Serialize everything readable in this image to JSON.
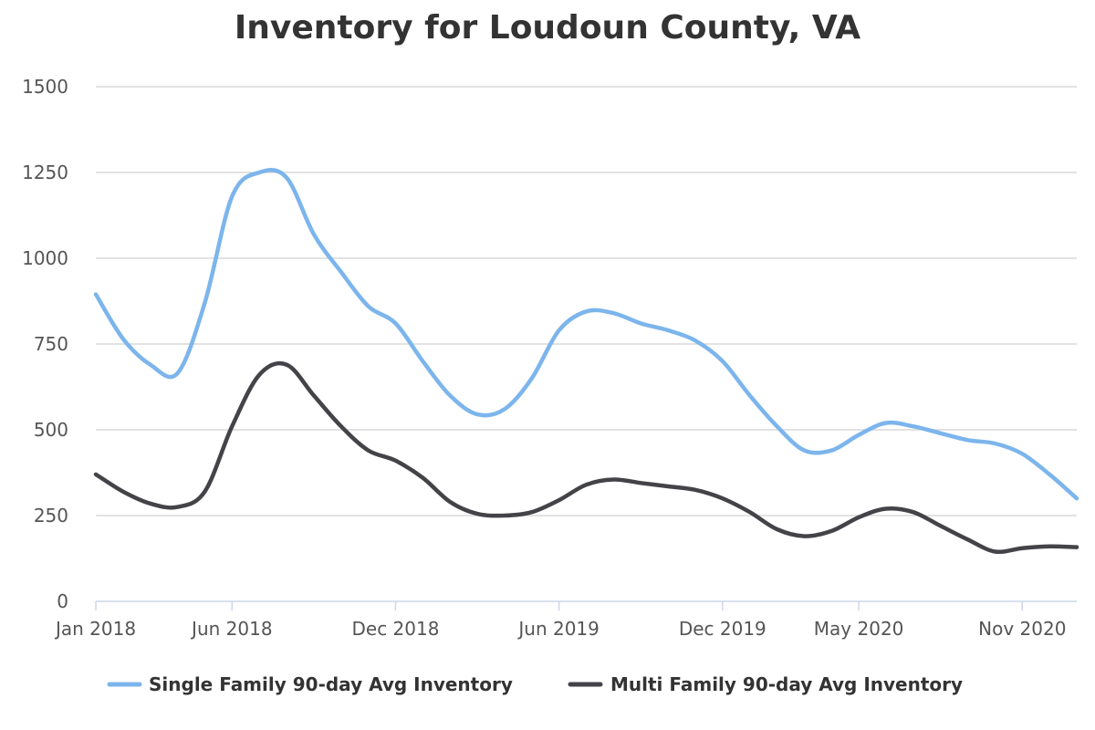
{
  "chart_data": {
    "type": "line",
    "title": "Inventory for Loudoun County, VA",
    "xlabel": "",
    "ylabel": "",
    "x_range": [
      "2018-01",
      "2021-01"
    ],
    "ylim": [
      0,
      1500
    ],
    "y_ticks": [
      0,
      250,
      500,
      750,
      1000,
      1250,
      1500
    ],
    "x_ticks": [
      {
        "label": "Jan 2018",
        "x": "2018-01"
      },
      {
        "label": "Jun 2018",
        "x": "2018-06"
      },
      {
        "label": "Dec 2018",
        "x": "2018-12"
      },
      {
        "label": "Jun 2019",
        "x": "2019-06"
      },
      {
        "label": "Dec 2019",
        "x": "2019-12"
      },
      {
        "label": "May 2020",
        "x": "2020-05"
      },
      {
        "label": "Nov 2020",
        "x": "2020-11"
      }
    ],
    "grid": true,
    "legend_position": "bottom",
    "series": [
      {
        "name": "Single Family 90-day Avg Inventory",
        "color": "#7cb5ec",
        "points": [
          [
            "2018-01",
            895
          ],
          [
            "2018-02",
            765
          ],
          [
            "2018-03",
            690
          ],
          [
            "2018-04",
            665
          ],
          [
            "2018-05",
            870
          ],
          [
            "2018-06",
            1180
          ],
          [
            "2018-07",
            1250
          ],
          [
            "2018-08",
            1235
          ],
          [
            "2018-09",
            1070
          ],
          [
            "2018-10",
            960
          ],
          [
            "2018-11",
            860
          ],
          [
            "2018-12",
            810
          ],
          [
            "2019-01",
            700
          ],
          [
            "2019-02",
            600
          ],
          [
            "2019-03",
            545
          ],
          [
            "2019-04",
            560
          ],
          [
            "2019-05",
            650
          ],
          [
            "2019-06",
            790
          ],
          [
            "2019-07",
            845
          ],
          [
            "2019-08",
            840
          ],
          [
            "2019-09",
            810
          ],
          [
            "2019-10",
            790
          ],
          [
            "2019-11",
            760
          ],
          [
            "2019-12",
            700
          ],
          [
            "2020-01",
            600
          ],
          [
            "2020-02",
            510
          ],
          [
            "2020-03",
            440
          ],
          [
            "2020-04",
            440
          ],
          [
            "2020-05",
            485
          ],
          [
            "2020-06",
            520
          ],
          [
            "2020-07",
            510
          ],
          [
            "2020-08",
            490
          ],
          [
            "2020-09",
            470
          ],
          [
            "2020-10",
            460
          ],
          [
            "2020-11",
            430
          ],
          [
            "2020-12",
            370
          ],
          [
            "2021-01",
            300
          ]
        ]
      },
      {
        "name": "Multi Family 90-day Avg Inventory",
        "color": "#434348",
        "points": [
          [
            "2018-01",
            370
          ],
          [
            "2018-02",
            320
          ],
          [
            "2018-03",
            285
          ],
          [
            "2018-04",
            275
          ],
          [
            "2018-05",
            320
          ],
          [
            "2018-06",
            510
          ],
          [
            "2018-07",
            660
          ],
          [
            "2018-08",
            690
          ],
          [
            "2018-09",
            600
          ],
          [
            "2018-10",
            510
          ],
          [
            "2018-11",
            440
          ],
          [
            "2018-12",
            410
          ],
          [
            "2019-01",
            360
          ],
          [
            "2019-02",
            290
          ],
          [
            "2019-03",
            255
          ],
          [
            "2019-04",
            250
          ],
          [
            "2019-05",
            260
          ],
          [
            "2019-06",
            295
          ],
          [
            "2019-07",
            340
          ],
          [
            "2019-08",
            355
          ],
          [
            "2019-09",
            345
          ],
          [
            "2019-10",
            335
          ],
          [
            "2019-11",
            325
          ],
          [
            "2019-12",
            300
          ],
          [
            "2020-01",
            260
          ],
          [
            "2020-02",
            210
          ],
          [
            "2020-03",
            190
          ],
          [
            "2020-04",
            205
          ],
          [
            "2020-05",
            245
          ],
          [
            "2020-06",
            270
          ],
          [
            "2020-07",
            260
          ],
          [
            "2020-08",
            220
          ],
          [
            "2020-09",
            180
          ],
          [
            "2020-10",
            145
          ],
          [
            "2020-11",
            155
          ],
          [
            "2020-12",
            160
          ],
          [
            "2021-01",
            158
          ]
        ]
      }
    ]
  }
}
